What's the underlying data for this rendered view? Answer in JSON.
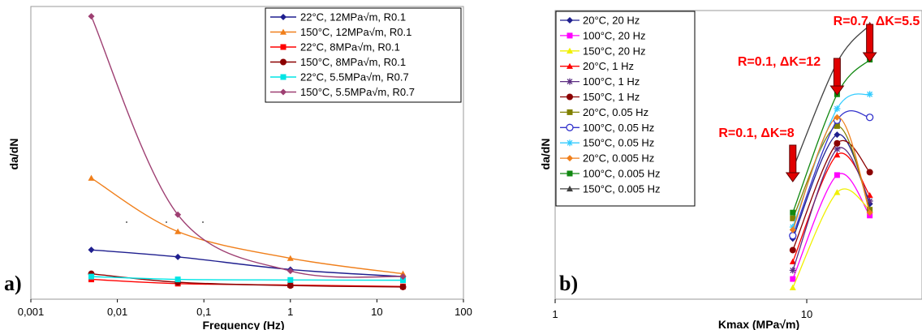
{
  "chart_data": [
    {
      "type": "line",
      "panel_label": "a)",
      "xlabel": "Frequency (Hz)",
      "ylabel": "da/dN",
      "xscale": "log",
      "xlim": [
        0.001,
        100
      ],
      "ylim": [
        0,
        1
      ],
      "xticks": [
        "0,001",
        "0,01",
        "0,1",
        "1",
        "10",
        "100"
      ],
      "legend_position": "top-right",
      "series": [
        {
          "name": "22°C, 12MPa√m, R0.1",
          "color": "#1f1f8f",
          "marker": "diamond",
          "x": [
            0.005,
            0.05,
            1,
            20
          ],
          "y": [
            0.135,
            0.11,
            0.065,
            0.04
          ]
        },
        {
          "name": "150°C, 12MPa√m, R0.1",
          "color": "#f07f1b",
          "marker": "triangle",
          "x": [
            0.005,
            0.05,
            1,
            20
          ],
          "y": [
            0.39,
            0.2,
            0.105,
            0.05
          ]
        },
        {
          "name": "22°C, 8MPa√m, R0.1",
          "color": "#ff0000",
          "marker": "square",
          "x": [
            0.005,
            0.05,
            1,
            20
          ],
          "y": [
            0.03,
            0.015,
            0.01,
            0.005
          ]
        },
        {
          "name": "150°C, 8MPa√m, R0.1",
          "color": "#8b0000",
          "marker": "circle",
          "x": [
            0.005,
            0.05,
            1,
            20
          ],
          "y": [
            0.05,
            0.02,
            0.008,
            0.003
          ]
        },
        {
          "name": "22°C, 5.5MPa√m, R0.7",
          "color": "#00e5e5",
          "marker": "square",
          "x": [
            0.005,
            0.05,
            1,
            20
          ],
          "y": [
            0.04,
            0.03,
            0.028,
            0.027
          ]
        },
        {
          "name": "150°C, 5.5MPa√m, R0.7",
          "color": "#9e3f72",
          "marker": "diamond",
          "x": [
            0.005,
            0.05,
            1,
            20
          ],
          "y": [
            0.965,
            0.26,
            0.06,
            0.04
          ]
        }
      ]
    },
    {
      "type": "line",
      "panel_label": "b)",
      "xlabel": "Kmax (MPa√m)",
      "ylabel": "da/dN",
      "xscale": "log",
      "yscale": "log",
      "xlim": [
        1,
        25
      ],
      "ylim": [
        0,
        1
      ],
      "xticks": [
        "1",
        "10"
      ],
      "legend_position": "top-left",
      "annotations": [
        {
          "text": "R=0.1, ΔK=8",
          "x": 8.8
        },
        {
          "text": "R=0.1, ΔK=12",
          "x": 13.2
        },
        {
          "text": "R=0.7, ΔK=5.5",
          "x": 17.8
        }
      ],
      "series": [
        {
          "name": "20°C, 20 Hz",
          "color": "#1f1f8f",
          "marker": "diamond",
          "x": [
            8.8,
            13.2,
            17.8
          ],
          "y": [
            0.21,
            0.57,
            0.33
          ]
        },
        {
          "name": "100°C, 20 Hz",
          "color": "#ff00ff",
          "marker": "square",
          "x": [
            8.8,
            13.2,
            17.8
          ],
          "y": [
            0.07,
            0.43,
            0.29
          ]
        },
        {
          "name": "150°C, 20 Hz",
          "color": "#f0f000",
          "marker": "triangle",
          "x": [
            8.8,
            13.2,
            17.8
          ],
          "y": [
            0.04,
            0.37,
            0.31
          ]
        },
        {
          "name": "20°C, 1 Hz",
          "color": "#ff0000",
          "marker": "triangle",
          "x": [
            8.8,
            13.2,
            17.8
          ],
          "y": [
            0.13,
            0.5,
            0.36
          ]
        },
        {
          "name": "100°C, 1 Hz",
          "color": "#5b2c82",
          "marker": "star",
          "x": [
            8.8,
            13.2,
            17.8
          ],
          "y": [
            0.1,
            0.52,
            0.34
          ]
        },
        {
          "name": "150°C, 1 Hz",
          "color": "#8b0000",
          "marker": "circle",
          "x": [
            8.8,
            13.2,
            17.8
          ],
          "y": [
            0.17,
            0.54,
            0.44
          ]
        },
        {
          "name": "20°C, 0.05 Hz",
          "color": "#808000",
          "marker": "square",
          "x": [
            8.8,
            13.2,
            17.8
          ],
          "y": [
            0.28,
            0.6,
            0.31
          ]
        },
        {
          "name": "100°C, 0.05 Hz",
          "color": "#3333cc",
          "marker": "circle-open",
          "x": [
            8.8,
            13.2,
            17.8
          ],
          "y": [
            0.22,
            0.62,
            0.63
          ]
        },
        {
          "name": "150°C, 0.05 Hz",
          "color": "#33ccff",
          "marker": "star",
          "x": [
            8.8,
            13.2,
            17.8
          ],
          "y": [
            0.25,
            0.66,
            0.71
          ]
        },
        {
          "name": "20°C, 0.005 Hz",
          "color": "#f07f1b",
          "marker": "diamond",
          "x": [
            8.8,
            13.2,
            17.8
          ],
          "y": [
            0.24,
            0.63,
            0.3
          ]
        },
        {
          "name": "100°C, 0.005 Hz",
          "color": "#118811",
          "marker": "square",
          "x": [
            8.8,
            13.2,
            17.8
          ],
          "y": [
            0.3,
            0.71,
            0.83
          ]
        },
        {
          "name": "150°C, 0.005 Hz",
          "color": "#404040",
          "marker": "triangle",
          "x": [
            8.8,
            13.2,
            17.8
          ],
          "y": [
            0.45,
            0.82,
            0.95
          ]
        }
      ]
    }
  ]
}
